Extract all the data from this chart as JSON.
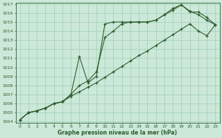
{
  "xlabel": "Graphe pression niveau de la mer (hPa)",
  "background_color": "#cbe8d8",
  "grid_color": "#9ecfb8",
  "line_color": "#2d5a2d",
  "ylim": [
    1004,
    1017
  ],
  "xlim": [
    -0.5,
    23.5
  ],
  "yticks": [
    1004,
    1005,
    1006,
    1007,
    1008,
    1009,
    1010,
    1011,
    1012,
    1013,
    1014,
    1015,
    1016,
    1017
  ],
  "xticks": [
    0,
    1,
    2,
    3,
    4,
    5,
    6,
    7,
    8,
    9,
    10,
    11,
    12,
    13,
    14,
    15,
    16,
    17,
    18,
    19,
    20,
    21,
    22,
    23
  ],
  "line1_x": [
    0,
    1,
    2,
    3,
    4,
    5,
    6,
    7,
    8,
    9,
    10,
    11,
    12,
    13,
    14,
    15,
    16,
    17,
    18,
    19,
    20,
    21,
    22,
    23
  ],
  "line1_y": [
    1004.2,
    1005.0,
    1005.2,
    1005.5,
    1006.0,
    1006.2,
    1007.0,
    1011.2,
    1008.3,
    1009.0,
    1014.8,
    1015.0,
    1015.0,
    1015.0,
    1015.0,
    1015.0,
    1015.2,
    1015.8,
    1016.3,
    1016.9,
    1016.1,
    1016.1,
    1015.5,
    1014.7
  ],
  "line2_x": [
    0,
    1,
    2,
    3,
    4,
    5,
    6,
    7,
    8,
    9,
    10,
    11,
    12,
    13,
    14,
    15,
    16,
    17,
    18,
    19,
    20,
    21,
    22,
    23
  ],
  "line2_y": [
    1004.2,
    1005.0,
    1005.2,
    1005.5,
    1006.0,
    1006.2,
    1006.8,
    1007.3,
    1007.8,
    1008.3,
    1008.9,
    1009.5,
    1010.1,
    1010.7,
    1011.3,
    1011.8,
    1012.4,
    1013.0,
    1013.6,
    1014.2,
    1014.8,
    1014.0,
    1013.5,
    1014.7
  ],
  "line3_x": [
    0,
    1,
    2,
    3,
    4,
    5,
    6,
    7,
    8,
    9,
    10,
    11,
    12,
    13,
    14,
    15,
    16,
    17,
    18,
    19,
    20,
    21,
    22,
    23
  ],
  "line3_y": [
    1004.2,
    1005.0,
    1005.2,
    1005.5,
    1006.0,
    1006.2,
    1007.0,
    1008.0,
    1008.5,
    1009.5,
    1013.3,
    1014.0,
    1014.8,
    1015.0,
    1015.0,
    1015.0,
    1015.2,
    1015.8,
    1016.5,
    1016.9,
    1016.2,
    1015.8,
    1015.2,
    1014.7
  ]
}
